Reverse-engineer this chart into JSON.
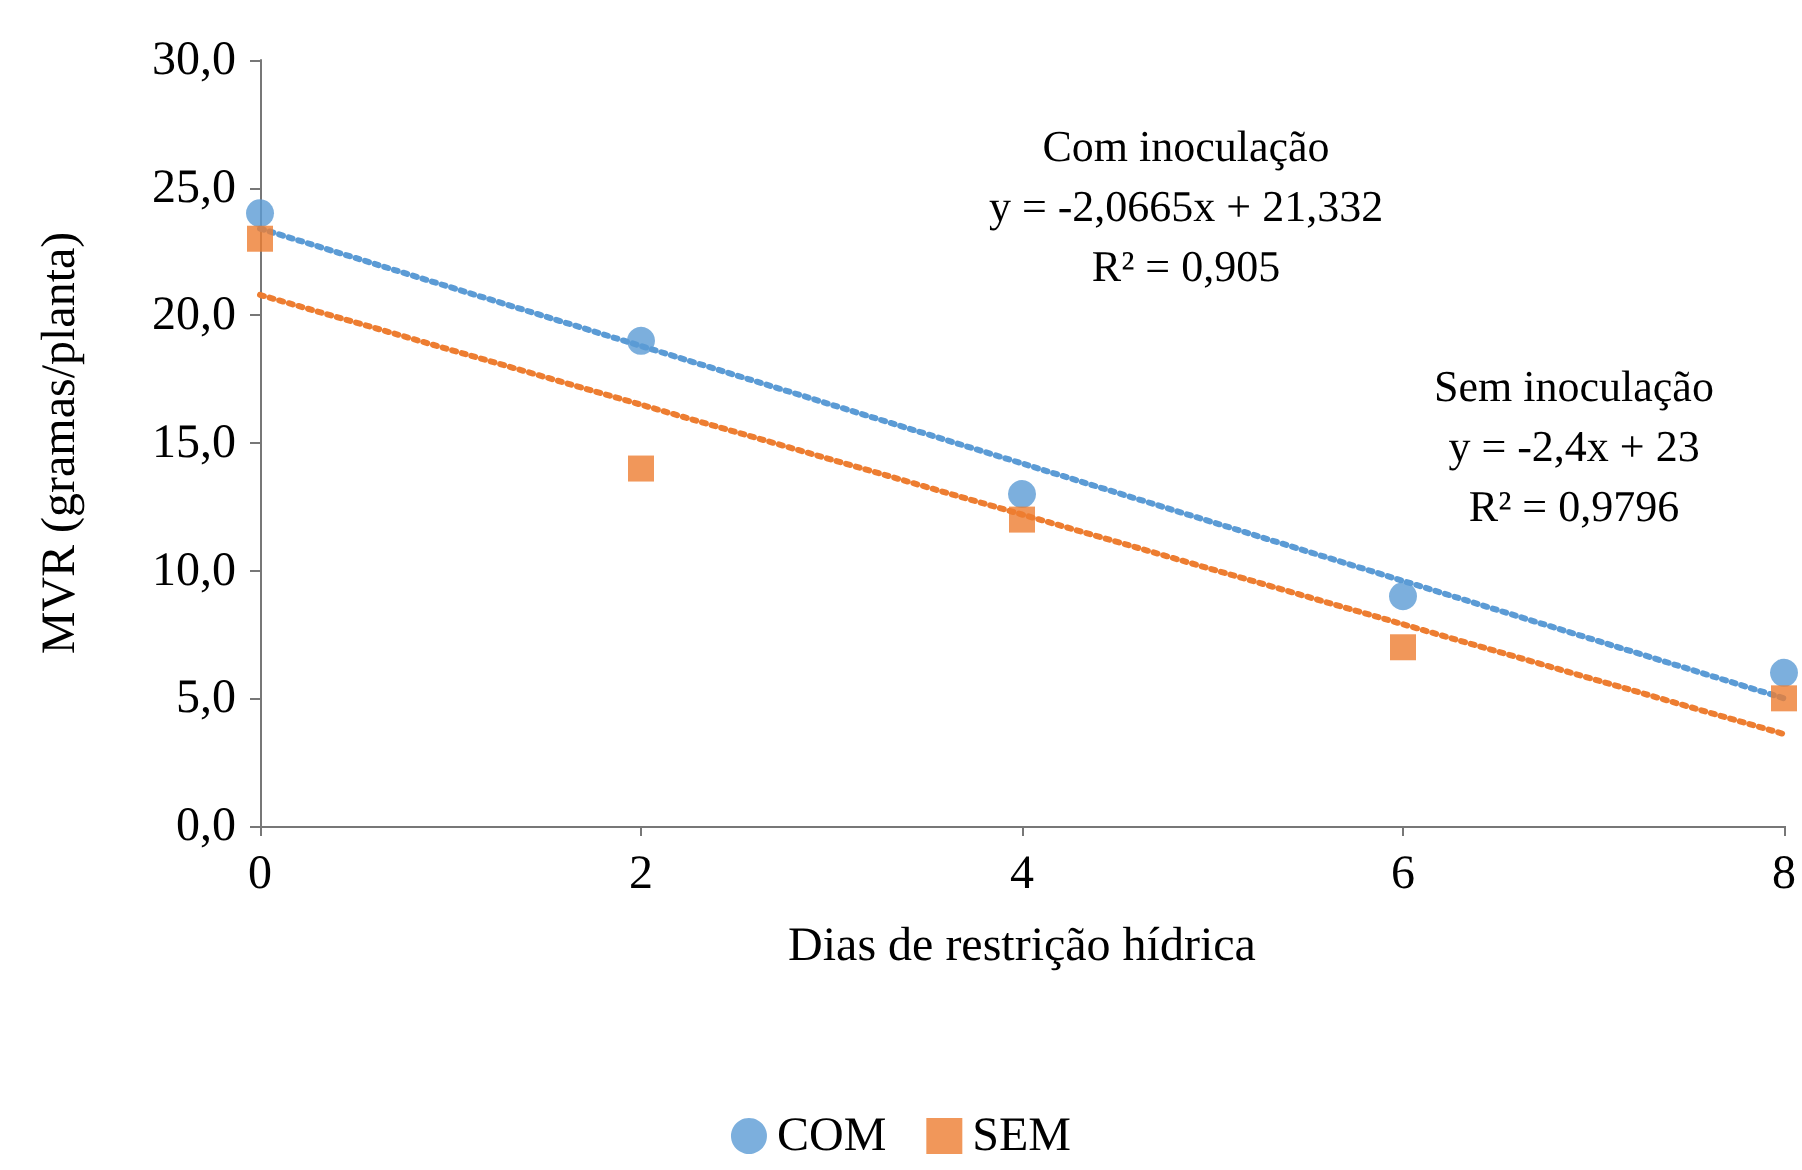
{
  "chart_data": {
    "type": "scatter",
    "xlabel": "Dias de restrição hídrica",
    "ylabel": "MVR (gramas/planta)",
    "x": [
      0,
      2,
      4,
      6,
      8
    ],
    "xlim": [
      0,
      8
    ],
    "xticks": [
      0,
      2,
      4,
      6,
      8
    ],
    "ylim": [
      0,
      30
    ],
    "yticks": [
      {
        "value": 0,
        "label": "0,0"
      },
      {
        "value": 5,
        "label": "5,0"
      },
      {
        "value": 10,
        "label": "10,0"
      },
      {
        "value": 15,
        "label": "15,0"
      },
      {
        "value": 20,
        "label": "20,0"
      },
      {
        "value": 25,
        "label": "25,0"
      },
      {
        "value": 30,
        "label": "30,0"
      }
    ],
    "grid": false,
    "legend": "bottom",
    "series": [
      {
        "name": "COM",
        "color": "#5b9bd5",
        "marker": "circle",
        "values": [
          24,
          19,
          13,
          9,
          6
        ]
      },
      {
        "name": "SEM",
        "color": "#ed7d31",
        "marker": "square",
        "values": [
          23,
          14,
          12,
          7,
          5
        ]
      },
      {
        "type": "line",
        "color": "#5b9bd5",
        "line_style": "dotted",
        "marker": "none",
        "values": [
          23.4,
          18.8,
          14.2,
          9.6,
          5
        ]
      },
      {
        "type": "line",
        "color": "#ed7d31",
        "line_style": "dotted",
        "marker": "none",
        "values": [
          20.8,
          16.5,
          12.2,
          7.9,
          3.6
        ]
      }
    ],
    "annotations": [
      "Com inoculação\ny = -2,0665x + 21,332\nR² = 0,905",
      "Sem inoculação\ny = -2,4x + 23\nR² = 0,9796"
    ]
  }
}
